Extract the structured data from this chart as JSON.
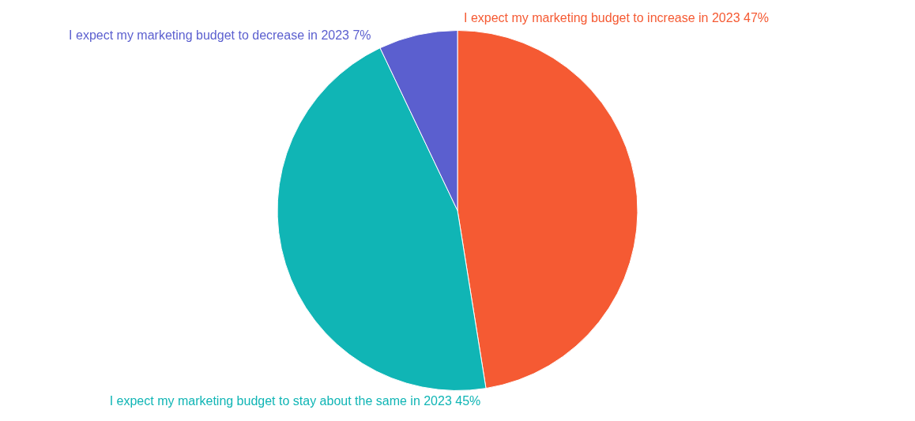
{
  "chart_data": {
    "type": "pie",
    "categories": [
      "I expect my marketing budget to increase in 2023",
      "I expect my marketing budget to stay about the same in 2023",
      "I expect my marketing budget to decrease in 2023"
    ],
    "values": [
      47,
      45,
      7
    ],
    "value_labels": [
      "47%",
      "45%",
      "7%"
    ],
    "colors": [
      "#f55a33",
      "#10b5b5",
      "#5b5fcf"
    ]
  }
}
